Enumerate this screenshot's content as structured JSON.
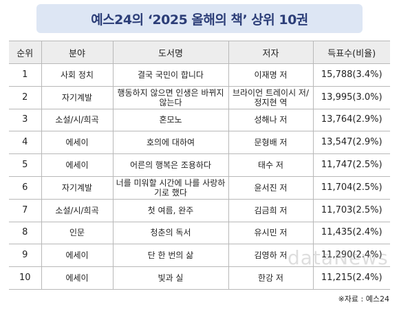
{
  "title": "예스24의 ‘2025 올해의 책’ 상위 10권",
  "headers": {
    "rank": "순위",
    "genre": "분야",
    "book": "도서명",
    "author": "저자",
    "votes": "득표수(비율)"
  },
  "rows": [
    {
      "rank": "1",
      "genre": "사회 정치",
      "book": "결국 국민이 합니다",
      "author": "이재명 저",
      "votes": "15,788(3.4%)"
    },
    {
      "rank": "2",
      "genre": "자기계발",
      "book": "행동하지 않으면 인생은 바뀌지 않는다",
      "author": "브라이언 트레이시 저/정지현 역",
      "votes": "13,995(3.0%)"
    },
    {
      "rank": "3",
      "genre": "소설/시/희곡",
      "book": "혼모노",
      "author": "성해나 저",
      "votes": "13,764(2.9%)"
    },
    {
      "rank": "4",
      "genre": "에세이",
      "book": "호의에 대하여",
      "author": "문형배 저",
      "votes": "13,547(2.9%)"
    },
    {
      "rank": "5",
      "genre": "에세이",
      "book": "어른의 행복은 조용하다",
      "author": "태수 저",
      "votes": "11,747(2.5%)"
    },
    {
      "rank": "6",
      "genre": "자기계발",
      "book": "너를 미워할 시간에 나를 사랑하기로 했다",
      "author": "윤서진 저",
      "votes": "11,704(2.5%)"
    },
    {
      "rank": "7",
      "genre": "소설/시/희곡",
      "book": "첫 여름, 완주",
      "author": "김금희 저",
      "votes": "11,703(2.5%)"
    },
    {
      "rank": "8",
      "genre": "인문",
      "book": "청춘의 독서",
      "author": "유시민 저",
      "votes": "11,435(2.4%)"
    },
    {
      "rank": "9",
      "genre": "에세이",
      "book": "단 한 번의 삶",
      "author": "김영하 저",
      "votes": "11,290(2.4%)"
    },
    {
      "rank": "10",
      "genre": "에세이",
      "book": "빛과 실",
      "author": "한강 저",
      "votes": "11,215(2.4%)"
    }
  ],
  "source": "※자료 : 예스24",
  "watermark": "dataNews"
}
